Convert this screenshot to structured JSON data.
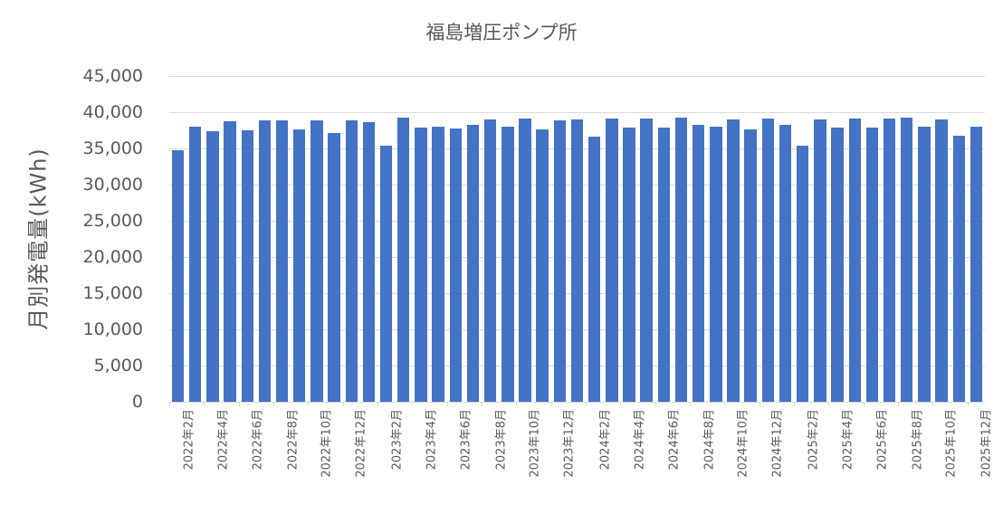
{
  "chart_data": {
    "type": "bar",
    "title": "福島増圧ポンプ所",
    "xlabel": "",
    "ylabel": "月別発電量(kWh)",
    "ylim": [
      0,
      45000
    ],
    "yticks": [
      0,
      5000,
      10000,
      15000,
      20000,
      25000,
      30000,
      35000,
      40000,
      45000
    ],
    "ytick_labels": [
      "0",
      "5,000",
      "10,000",
      "15,000",
      "20,000",
      "25,000",
      "30,000",
      "35,000",
      "40,000",
      "45,000"
    ],
    "grid": true,
    "legend": null,
    "bar_color": "#4472C4",
    "categories": [
      "2022年2月",
      "2022年3月",
      "2022年4月",
      "2022年5月",
      "2022年6月",
      "2022年7月",
      "2022年8月",
      "2022年9月",
      "2022年10月",
      "2022年11月",
      "2022年12月",
      "2023年1月",
      "2023年2月",
      "2023年3月",
      "2023年4月",
      "2023年5月",
      "2023年6月",
      "2023年7月",
      "2023年8月",
      "2023年9月",
      "2023年10月",
      "2023年11月",
      "2023年12月",
      "2024年1月",
      "2024年2月",
      "2024年3月",
      "2024年4月",
      "2024年5月",
      "2024年6月",
      "2024年7月",
      "2024年8月",
      "2024年9月",
      "2024年10月",
      "2024年11月",
      "2024年12月",
      "2025年1月",
      "2025年2月",
      "2025年3月",
      "2025年4月",
      "2025年5月",
      "2025年6月",
      "2025年7月",
      "2025年8月",
      "2025年9月",
      "2025年10月",
      "2025年11月",
      "2025年12月"
    ],
    "visible_x_labels": [
      "2022年2月",
      "2022年4月",
      "2022年6月",
      "2022年8月",
      "2022年10月",
      "2022年12月",
      "2023年2月",
      "2023年4月",
      "2023年6月",
      "2023年8月",
      "2023年10月",
      "2023年12月",
      "2024年2月",
      "2024年4月",
      "2024年6月",
      "2024年8月",
      "2024年10月",
      "2024年12月",
      "2025年2月",
      "2025年4月",
      "2025年6月",
      "2025年8月",
      "2025年10月",
      "2025年12月"
    ],
    "values": [
      34700,
      38000,
      37400,
      38800,
      37500,
      38900,
      38900,
      37600,
      38900,
      37100,
      38900,
      38600,
      35400,
      39300,
      37900,
      38000,
      37800,
      38300,
      39000,
      38000,
      39100,
      37600,
      38900,
      39000,
      36600,
      39100,
      37900,
      39100,
      37900,
      39300,
      38300,
      38000,
      39000,
      37600,
      39100,
      38300,
      35400,
      39000,
      37900,
      39100,
      37900,
      39100,
      39300,
      38000,
      39000,
      36800,
      38000
    ]
  }
}
